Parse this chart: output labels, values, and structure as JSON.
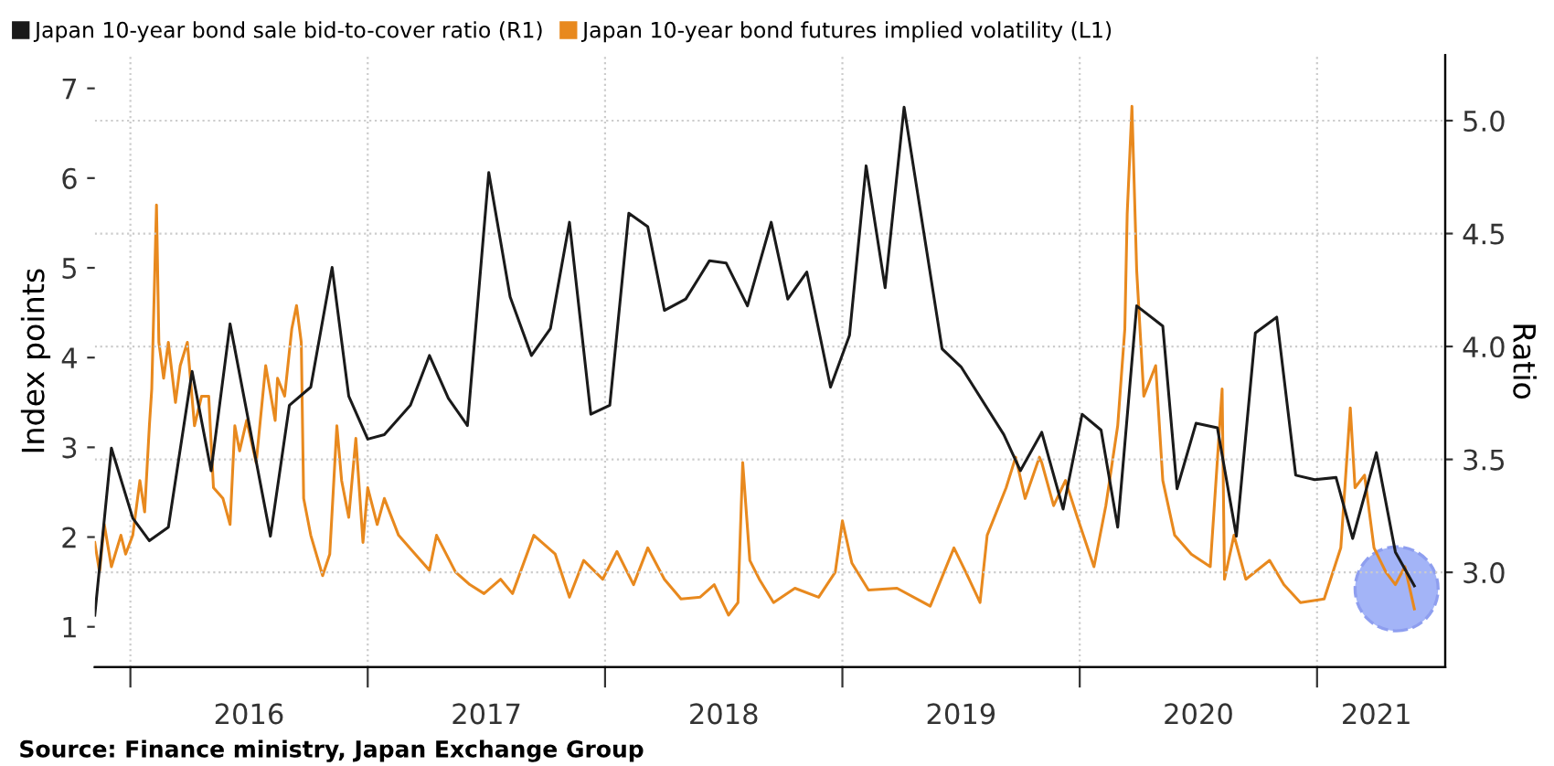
{
  "chart_data": {
    "type": "line",
    "ylabel": "Index points",
    "y2label": "Ratio",
    "annotations": [
      "Source: Finance ministry, Japan Exchange Group"
    ],
    "legend": "top left",
    "grid": true,
    "marker": "none",
    "line_style": "solid",
    "xlim": [
      2015.85,
      2021.54
    ],
    "ylim": [
      0.55,
      7.37
    ],
    "y2lim": [
      2.58,
      5.29
    ],
    "xticks": [
      {
        "value": 2016,
        "label": null
      },
      {
        "value": 2016.5,
        "label": "2016"
      },
      {
        "value": 2017,
        "label": null
      },
      {
        "value": 2017.5,
        "label": "2017"
      },
      {
        "value": 2018,
        "label": null
      },
      {
        "value": 2018.5,
        "label": "2018"
      },
      {
        "value": 2019,
        "label": null
      },
      {
        "value": 2019.5,
        "label": "2019"
      },
      {
        "value": 2020,
        "label": null
      },
      {
        "value": 2020.5,
        "label": "2020"
      },
      {
        "value": 2021,
        "label": null
      },
      {
        "value": 2021.25,
        "label": "2021"
      }
    ],
    "yticks": [
      1,
      2,
      3,
      4,
      5,
      6,
      7
    ],
    "y2ticks": [
      {
        "value": 3,
        "label": "3.0"
      },
      3.5,
      {
        "value": 4,
        "label": "4.0"
      },
      4.5,
      {
        "value": 5,
        "label": "5.0"
      }
    ],
    "series": [
      {
        "name": "Japan 10-year bond sale bid-to-cover ratio (R1)",
        "color": "#1a1a1a",
        "axis": "y2",
        "x": [
          2015.85,
          2015.92,
          2016.01,
          2016.08,
          2016.16,
          2016.26,
          2016.34,
          2016.42,
          2016.59,
          2016.67,
          2016.76,
          2016.85,
          2016.92,
          2017.0,
          2017.07,
          2017.18,
          2017.26,
          2017.34,
          2017.42,
          2017.51,
          2017.6,
          2017.69,
          2017.77,
          2017.85,
          2017.94,
          2018.02,
          2018.1,
          2018.18,
          2018.25,
          2018.34,
          2018.44,
          2018.51,
          2018.6,
          2018.7,
          2018.77,
          2018.85,
          2018.95,
          2019.03,
          2019.1,
          2019.18,
          2019.26,
          2019.42,
          2019.5,
          2019.68,
          2019.75,
          2019.84,
          2019.93,
          2020.01,
          2020.09,
          2020.16,
          2020.24,
          2020.35,
          2020.41,
          2020.49,
          2020.58,
          2020.66,
          2020.74,
          2020.83,
          2020.91,
          2020.99,
          2021.08,
          2021.15,
          2021.25,
          2021.33,
          2021.41
        ],
        "values": [
          2.81,
          3.55,
          3.24,
          3.14,
          3.2,
          3.89,
          3.45,
          4.1,
          3.16,
          3.74,
          3.82,
          4.35,
          3.78,
          3.59,
          3.61,
          3.74,
          3.96,
          3.77,
          3.65,
          4.77,
          4.22,
          3.96,
          4.08,
          4.55,
          3.7,
          3.74,
          4.59,
          4.53,
          4.16,
          4.21,
          4.38,
          4.37,
          4.18,
          4.55,
          4.21,
          4.33,
          3.82,
          4.05,
          4.8,
          4.26,
          5.06,
          3.99,
          3.91,
          3.61,
          3.45,
          3.62,
          3.28,
          3.7,
          3.63,
          3.2,
          4.18,
          4.09,
          3.37,
          3.66,
          3.64,
          3.16,
          4.06,
          4.13,
          3.43,
          3.41,
          3.42,
          3.15,
          3.53,
          3.09,
          2.94
        ]
      },
      {
        "name": "Japan 10-year bond futures implied volatility (L1)",
        "color": "#e8891e",
        "axis": "y",
        "x": [
          2015.85,
          2015.87,
          2015.89,
          2015.92,
          2015.96,
          2015.98,
          2016.01,
          2016.04,
          2016.06,
          2016.08,
          2016.09,
          2016.11,
          2016.12,
          2016.14,
          2016.16,
          2016.19,
          2016.21,
          2016.24,
          2016.27,
          2016.3,
          2016.33,
          2016.35,
          2016.39,
          2016.42,
          2016.44,
          2016.46,
          2016.49,
          2016.53,
          2016.57,
          2016.61,
          2016.62,
          2016.65,
          2016.68,
          2016.7,
          2016.72,
          2016.73,
          2016.76,
          2016.81,
          2016.84,
          2016.87,
          2016.89,
          2016.92,
          2016.95,
          2016.98,
          2017.0,
          2017.04,
          2017.07,
          2017.13,
          2017.2,
          2017.26,
          2017.29,
          2017.37,
          2017.43,
          2017.49,
          2017.56,
          2017.61,
          2017.7,
          2017.79,
          2017.85,
          2017.91,
          2017.99,
          2018.05,
          2018.12,
          2018.18,
          2018.25,
          2018.32,
          2018.4,
          2018.46,
          2018.52,
          2018.56,
          2018.58,
          2018.61,
          2018.65,
          2018.71,
          2018.8,
          2018.9,
          2018.97,
          2019.0,
          2019.04,
          2019.11,
          2019.23,
          2019.37,
          2019.47,
          2019.52,
          2019.58,
          2019.61,
          2019.69,
          2019.73,
          2019.77,
          2019.83,
          2019.84,
          2019.89,
          2019.94,
          2019.99,
          2020.06,
          2020.11,
          2020.16,
          2020.19,
          2020.2,
          2020.22,
          2020.24,
          2020.27,
          2020.32,
          2020.35,
          2020.4,
          2020.47,
          2020.55,
          2020.6,
          2020.61,
          2020.65,
          2020.7,
          2020.8,
          2020.86,
          2020.93,
          2021.03,
          2021.1,
          2021.14,
          2021.16,
          2021.2,
          2021.24,
          2021.29,
          2021.33,
          2021.37,
          2021.41
        ],
        "values": [
          1.94,
          1.61,
          2.14,
          1.67,
          2.02,
          1.81,
          2.02,
          2.63,
          2.28,
          3.24,
          3.65,
          5.7,
          4.17,
          3.77,
          4.17,
          3.5,
          3.91,
          4.17,
          3.24,
          3.57,
          3.57,
          2.55,
          2.43,
          2.14,
          3.24,
          2.96,
          3.3,
          2.83,
          3.91,
          3.3,
          3.77,
          3.57,
          4.32,
          4.58,
          4.17,
          2.43,
          2.02,
          1.57,
          1.81,
          3.24,
          2.63,
          2.22,
          3.1,
          1.94,
          2.55,
          2.14,
          2.43,
          2.02,
          1.81,
          1.63,
          2.02,
          1.61,
          1.47,
          1.37,
          1.53,
          1.37,
          2.02,
          1.81,
          1.33,
          1.74,
          1.53,
          1.84,
          1.47,
          1.88,
          1.53,
          1.31,
          1.33,
          1.47,
          1.13,
          1.27,
          2.83,
          1.74,
          1.53,
          1.27,
          1.43,
          1.33,
          1.61,
          2.18,
          1.71,
          1.41,
          1.43,
          1.23,
          1.88,
          1.61,
          1.27,
          2.02,
          2.55,
          2.89,
          2.43,
          2.89,
          2.83,
          2.35,
          2.63,
          2.22,
          1.67,
          2.35,
          3.24,
          4.32,
          5.6,
          6.8,
          4.97,
          3.57,
          3.91,
          2.63,
          2.02,
          1.81,
          1.67,
          3.65,
          1.53,
          2.02,
          1.53,
          1.74,
          1.47,
          1.27,
          1.31,
          1.88,
          3.44,
          2.55,
          2.69,
          1.88,
          1.61,
          1.47,
          1.67,
          1.2
        ]
      }
    ]
  }
}
